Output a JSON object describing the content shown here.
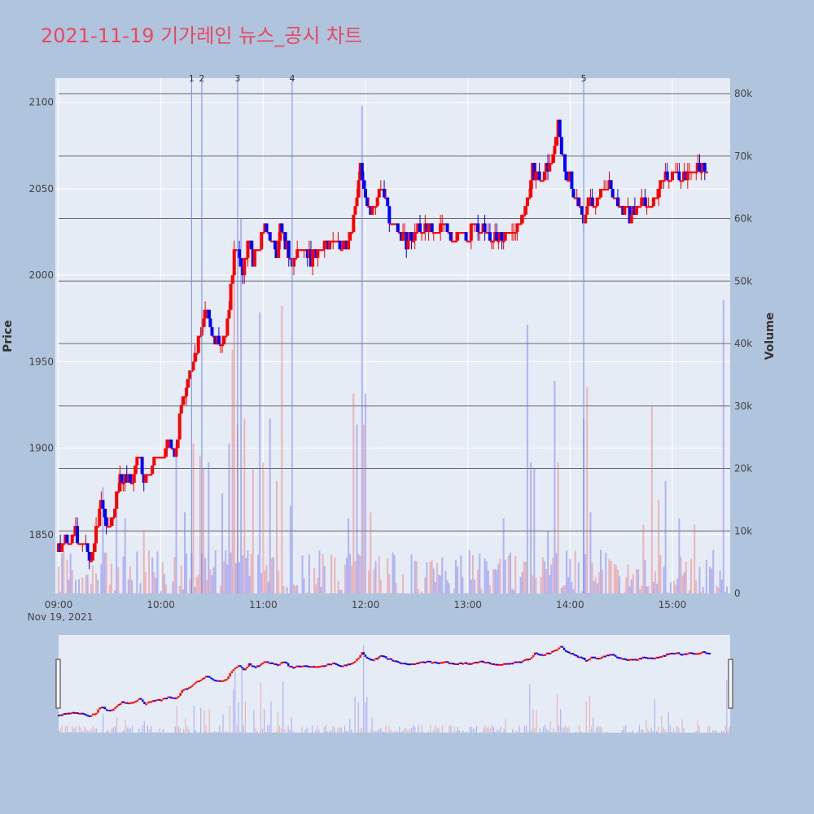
{
  "title": "2021-11-19 기가레인 뉴스_공시 차트",
  "colors": {
    "page_bg": "#b0c4de",
    "plot_bg": "#e5ecf6",
    "up": "#ff0000",
    "down": "#0000ff",
    "event_line": "#6f8fe8",
    "hline": "#666666"
  },
  "chart_data": {
    "type": "candlestick",
    "y_axis_title": "Price",
    "y2_axis_title": "Volume",
    "x_date_label": "Nov 19, 2021",
    "x_ticks": [
      "09:00",
      "10:00",
      "11:00",
      "12:00",
      "13:00",
      "14:00",
      "15:00"
    ],
    "price_ticks": [
      1850,
      1900,
      1950,
      2000,
      2050,
      2100
    ],
    "volume_ticks": [
      "0",
      "10k",
      "20k",
      "30k",
      "40k",
      "50k",
      "60k",
      "70k",
      "80k"
    ],
    "price_range": [
      1816,
      2114
    ],
    "volume_range": [
      0,
      80000
    ],
    "time_range": [
      "09:00",
      "15:32"
    ],
    "horizontal_volume_lines": [
      10000,
      20000,
      30000,
      40000,
      50000,
      60000,
      70000,
      80000
    ],
    "events": [
      {
        "label": "1",
        "time": "10:18"
      },
      {
        "label": "2",
        "time": "10:24"
      },
      {
        "label": "3",
        "time": "10:45"
      },
      {
        "label": "4",
        "time": "11:17"
      },
      {
        "label": "5",
        "time": "14:08"
      }
    ],
    "price_path": [
      [
        "09:00",
        1840
      ],
      [
        "09:03",
        1845
      ],
      [
        "09:10",
        1850
      ],
      [
        "09:15",
        1845
      ],
      [
        "09:18",
        1835
      ],
      [
        "09:22",
        1850
      ],
      [
        "09:25",
        1870
      ],
      [
        "09:28",
        1855
      ],
      [
        "09:32",
        1860
      ],
      [
        "09:37",
        1885
      ],
      [
        "09:41",
        1880
      ],
      [
        "09:44",
        1885
      ],
      [
        "09:47",
        1900
      ],
      [
        "09:50",
        1880
      ],
      [
        "09:55",
        1890
      ],
      [
        "10:00",
        1895
      ],
      [
        "10:05",
        1905
      ],
      [
        "10:08",
        1895
      ],
      [
        "10:12",
        1925
      ],
      [
        "10:15",
        1935
      ],
      [
        "10:18",
        1945
      ],
      [
        "10:20",
        1955
      ],
      [
        "10:23",
        1965
      ],
      [
        "10:26",
        1980
      ],
      [
        "10:29",
        1970
      ],
      [
        "10:32",
        1960
      ],
      [
        "10:35",
        1965
      ],
      [
        "10:38",
        1965
      ],
      [
        "10:41",
        1995
      ],
      [
        "10:43",
        2010
      ],
      [
        "10:45",
        2015
      ],
      [
        "10:48",
        2000
      ],
      [
        "10:51",
        2020
      ],
      [
        "10:54",
        2010
      ],
      [
        "10:57",
        2015
      ],
      [
        "11:00",
        2030
      ],
      [
        "11:04",
        2025
      ],
      [
        "11:08",
        2015
      ],
      [
        "11:11",
        2030
      ],
      [
        "11:14",
        2015
      ],
      [
        "11:17",
        2010
      ],
      [
        "11:22",
        2015
      ],
      [
        "11:28",
        2010
      ],
      [
        "11:35",
        2015
      ],
      [
        "11:40",
        2025
      ],
      [
        "11:45",
        2015
      ],
      [
        "11:50",
        2020
      ],
      [
        "11:53",
        2030
      ],
      [
        "11:55",
        2045
      ],
      [
        "11:57",
        2060
      ],
      [
        "12:00",
        2040
      ],
      [
        "12:04",
        2035
      ],
      [
        "12:08",
        2050
      ],
      [
        "12:12",
        2040
      ],
      [
        "12:16",
        2030
      ],
      [
        "12:20",
        2025
      ],
      [
        "12:25",
        2020
      ],
      [
        "12:30",
        2025
      ],
      [
        "12:35",
        2030
      ],
      [
        "12:40",
        2025
      ],
      [
        "12:45",
        2030
      ],
      [
        "12:50",
        2020
      ],
      [
        "12:55",
        2025
      ],
      [
        "13:00",
        2020
      ],
      [
        "13:05",
        2030
      ],
      [
        "13:10",
        2025
      ],
      [
        "13:15",
        2020
      ],
      [
        "13:20",
        2020
      ],
      [
        "13:25",
        2025
      ],
      [
        "13:30",
        2030
      ],
      [
        "13:35",
        2040
      ],
      [
        "13:38",
        2060
      ],
      [
        "13:42",
        2055
      ],
      [
        "13:46",
        2060
      ],
      [
        "13:50",
        2070
      ],
      [
        "13:53",
        2085
      ],
      [
        "13:56",
        2065
      ],
      [
        "14:00",
        2055
      ],
      [
        "14:03",
        2045
      ],
      [
        "14:06",
        2040
      ],
      [
        "14:08",
        2030
      ],
      [
        "14:11",
        2045
      ],
      [
        "14:15",
        2040
      ],
      [
        "14:19",
        2050
      ],
      [
        "14:22",
        2055
      ],
      [
        "14:26",
        2045
      ],
      [
        "14:30",
        2040
      ],
      [
        "14:34",
        2035
      ],
      [
        "14:38",
        2040
      ],
      [
        "14:42",
        2045
      ],
      [
        "14:46",
        2040
      ],
      [
        "14:50",
        2045
      ],
      [
        "14:55",
        2055
      ],
      [
        "15:00",
        2060
      ],
      [
        "15:04",
        2055
      ],
      [
        "15:08",
        2060
      ],
      [
        "15:12",
        2060
      ],
      [
        "15:16",
        2065
      ],
      [
        "15:20",
        2060
      ]
    ],
    "volume_spikes": [
      [
        "09:26",
        17000
      ],
      [
        "09:34",
        14000
      ],
      [
        "09:39",
        12000
      ],
      [
        "09:50",
        10000
      ],
      [
        "10:09",
        24000
      ],
      [
        "10:14",
        13000
      ],
      [
        "10:19",
        24000
      ],
      [
        "10:23",
        22000
      ],
      [
        "10:25",
        20000
      ],
      [
        "10:28",
        21000
      ],
      [
        "10:36",
        16000
      ],
      [
        "10:40",
        24000
      ],
      [
        "10:42",
        39000
      ],
      [
        "10:43",
        55000
      ],
      [
        "10:45",
        27000
      ],
      [
        "10:47",
        60000
      ],
      [
        "10:49",
        28000
      ],
      [
        "10:54",
        20000
      ],
      [
        "10:58",
        45000
      ],
      [
        "11:00",
        21000
      ],
      [
        "11:04",
        28000
      ],
      [
        "11:08",
        18000
      ],
      [
        "11:11",
        46000
      ],
      [
        "11:16",
        14000
      ],
      [
        "11:50",
        12000
      ],
      [
        "11:53",
        32000
      ],
      [
        "11:55",
        27000
      ],
      [
        "11:58",
        78000
      ],
      [
        "11:59",
        27000
      ],
      [
        "12:00",
        32000
      ],
      [
        "12:03",
        13000
      ],
      [
        "13:21",
        12000
      ],
      [
        "13:35",
        43000
      ],
      [
        "13:37",
        21000
      ],
      [
        "13:39",
        20000
      ],
      [
        "13:47",
        10000
      ],
      [
        "13:51",
        34000
      ],
      [
        "13:53",
        21000
      ],
      [
        "14:08",
        28000
      ],
      [
        "14:10",
        33000
      ],
      [
        "14:12",
        13000
      ],
      [
        "14:43",
        11000
      ],
      [
        "14:48",
        30000
      ],
      [
        "14:52",
        15000
      ],
      [
        "14:56",
        18000
      ],
      [
        "15:04",
        12000
      ],
      [
        "15:13",
        11000
      ],
      [
        "15:30",
        47000
      ]
    ]
  }
}
